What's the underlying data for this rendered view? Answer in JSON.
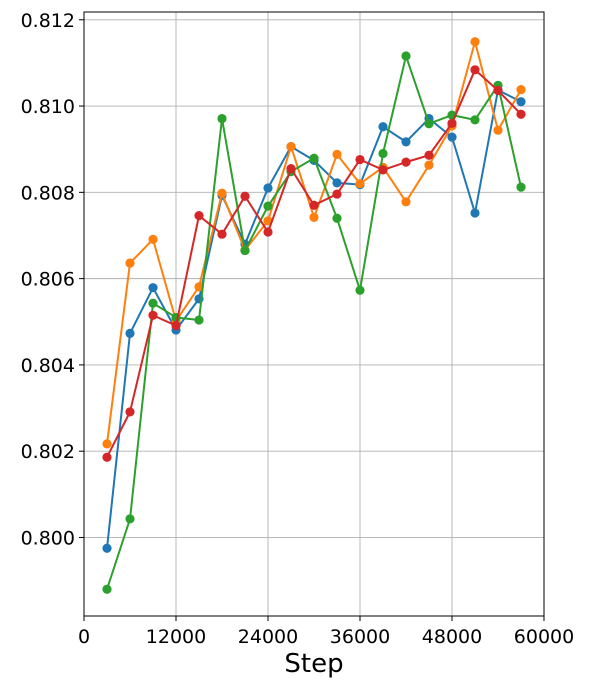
{
  "chart_data": {
    "type": "line",
    "xlabel": "Step",
    "ylabel": "",
    "xlim": [
      0,
      60000
    ],
    "ylim": [
      0.79818,
      0.81218
    ],
    "grid": true,
    "x_ticks": [
      0,
      12000,
      24000,
      36000,
      48000,
      60000
    ],
    "x_tick_labels": [
      "0",
      "12000",
      "24000",
      "36000",
      "48000",
      "60000"
    ],
    "y_ticks": [
      0.8,
      0.802,
      0.804,
      0.806,
      0.808,
      0.81,
      0.812
    ],
    "y_tick_labels": [
      "0.800",
      "0.802",
      "0.804",
      "0.806",
      "0.808",
      "0.810",
      "0.812"
    ],
    "x": [
      3000,
      6000,
      9000,
      12000,
      15000,
      18000,
      21000,
      24000,
      27000,
      30000,
      33000,
      36000,
      39000,
      42000,
      45000,
      48000,
      51000,
      54000,
      57000
    ],
    "series": [
      {
        "color": "#1f77b4",
        "values": [
          0.79975,
          0.80473,
          0.80579,
          0.80481,
          0.80553,
          0.80793,
          0.8068,
          0.8081,
          0.80906,
          0.80874,
          0.80822,
          0.80818,
          0.80952,
          0.80917,
          0.80971,
          0.80928,
          0.80752,
          0.81037,
          0.8101
        ]
      },
      {
        "color": "#ff7f0e",
        "values": [
          0.80217,
          0.80636,
          0.80691,
          0.80502,
          0.80581,
          0.80798,
          0.80666,
          0.80734,
          0.80906,
          0.80742,
          0.80888,
          0.8082,
          0.80858,
          0.80778,
          0.80863,
          0.80954,
          0.81149,
          0.80944,
          0.81038
        ]
      },
      {
        "color": "#2ca02c",
        "values": [
          0.7988,
          0.80043,
          0.80543,
          0.8051,
          0.80504,
          0.80971,
          0.80665,
          0.80768,
          0.80848,
          0.80879,
          0.8074,
          0.80573,
          0.8089,
          0.81116,
          0.80959,
          0.80979,
          0.80968,
          0.81048,
          0.80812
        ]
      },
      {
        "color": "#d62728",
        "values": [
          0.80186,
          0.80291,
          0.80515,
          0.80491,
          0.80746,
          0.80703,
          0.80791,
          0.80708,
          0.80855,
          0.8077,
          0.80796,
          0.80876,
          0.80852,
          0.8087,
          0.80886,
          0.8096,
          0.81084,
          0.81036,
          0.80981
        ]
      }
    ]
  }
}
